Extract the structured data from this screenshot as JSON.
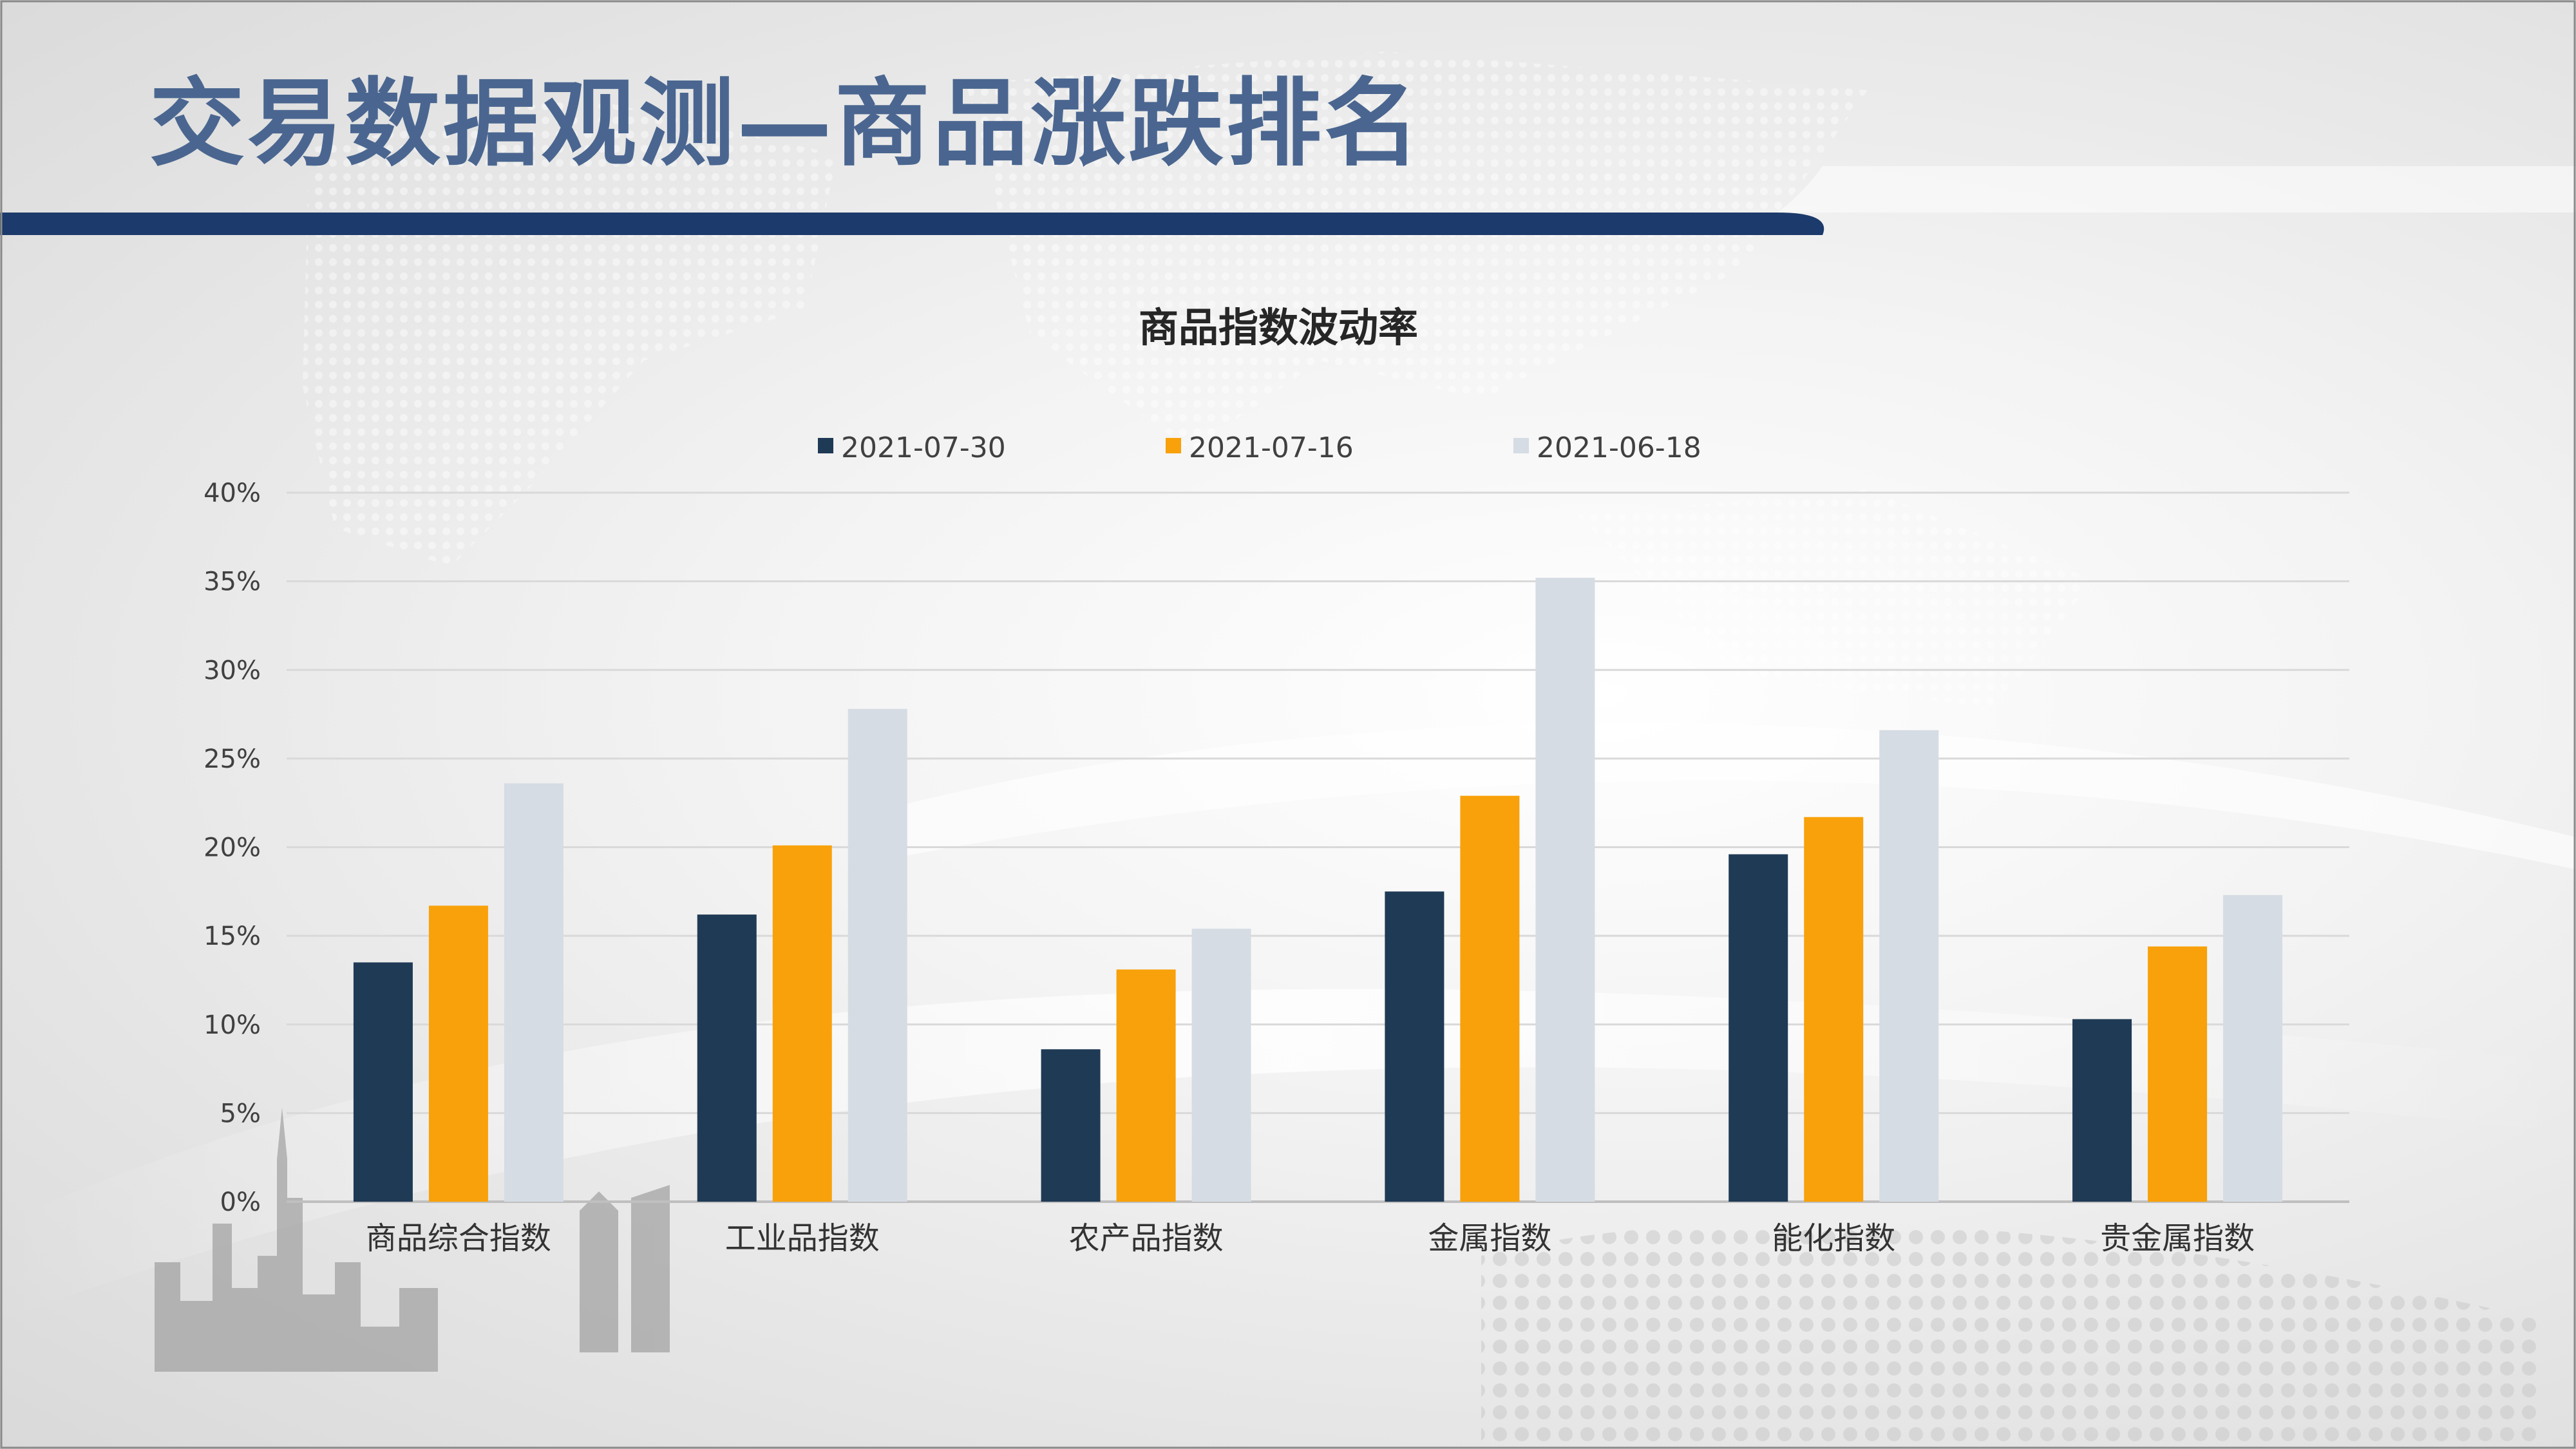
{
  "slide": {
    "title": "交易数据观测—商品涨跌排名"
  },
  "colors": {
    "title_text": "#4a6690",
    "header_band": "#1c3a6b",
    "series": [
      "#1f3a55",
      "#f8a10a",
      "#d6dce4"
    ]
  },
  "chart_data": {
    "type": "bar",
    "title": "商品指数波动率",
    "xlabel": "",
    "ylabel": "",
    "categories": [
      "商品综合指数",
      "工业品指数",
      "农产品指数",
      "金属指数",
      "能化指数",
      "贵金属指数"
    ],
    "series": [
      {
        "name": "2021-07-30",
        "values": [
          0.135,
          0.162,
          0.086,
          0.175,
          0.196,
          0.103
        ]
      },
      {
        "name": "2021-07-16",
        "values": [
          0.167,
          0.201,
          0.131,
          0.229,
          0.217,
          0.144
        ]
      },
      {
        "name": "2021-06-18",
        "values": [
          0.236,
          0.278,
          0.154,
          0.352,
          0.266,
          0.173
        ]
      }
    ],
    "ylim": [
      0,
      0.4
    ],
    "yticks": [
      0,
      0.05,
      0.1,
      0.15,
      0.2,
      0.25,
      0.3,
      0.35,
      0.4
    ],
    "ytick_labels": [
      "0%",
      "5%",
      "10%",
      "15%",
      "20%",
      "25%",
      "30%",
      "35%",
      "40%"
    ],
    "grid": true,
    "legend_position": "top"
  }
}
